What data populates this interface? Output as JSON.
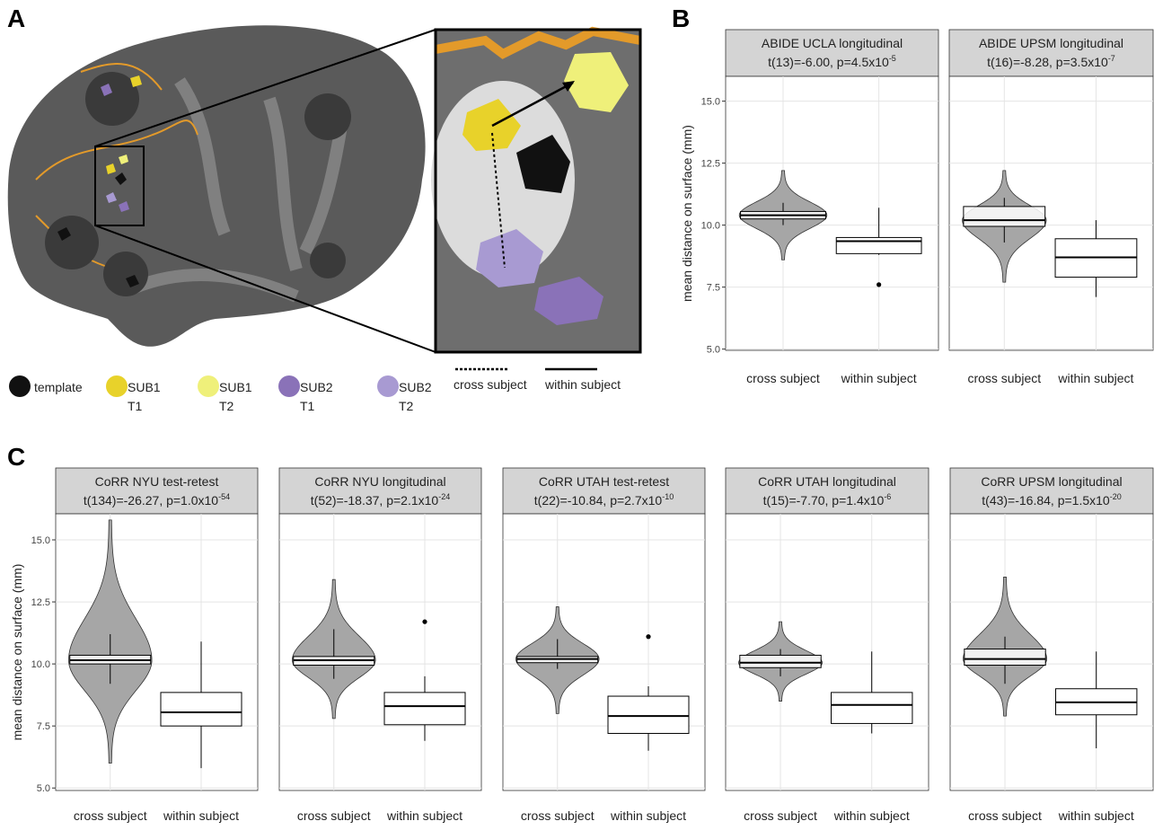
{
  "panel_labels": [
    "A",
    "B",
    "C"
  ],
  "panel_a": {
    "legend": [
      {
        "label": "template",
        "color": "#111111"
      },
      {
        "label": "SUB1\nT1",
        "color": "#e8d22a"
      },
      {
        "label": "SUB1\nT2",
        "color": "#eff07a"
      },
      {
        "label": "SUB2\nT1",
        "color": "#8a72b8"
      },
      {
        "label": "SUB2\nT2",
        "color": "#a89ad2"
      }
    ],
    "line_legend": [
      "cross subject",
      "within subject"
    ]
  },
  "chart_data": [
    {
      "type": "violin",
      "title": "ABIDE UCLA longitudinal",
      "subtitle": "t(13)=-6.00, p=4.5x10",
      "subtitle_exponent": "-5",
      "ylabel": "mean distance on surface (mm)",
      "categories": [
        "cross subject",
        "within subject"
      ],
      "ylim": [
        4.95,
        16.0
      ],
      "yticks": [
        {
          "value": 5,
          "label": "5.0"
        },
        {
          "value": 7.5,
          "label": "7.5"
        },
        {
          "value": 10,
          "label": "10.0"
        },
        {
          "value": 12.5,
          "label": "12.5"
        },
        {
          "value": 15,
          "label": "15.0"
        }
      ],
      "grid": true,
      "violin": {
        "color": "#a6a6a6",
        "min": 8.6,
        "max": 12.2
      },
      "boxes": [
        {
          "whisker_low": 10.0,
          "q1": 10.25,
          "median": 10.4,
          "q3": 10.55,
          "whisker_high": 10.9,
          "outliers": []
        },
        {
          "whisker_low": 8.8,
          "q1": 8.85,
          "median": 9.35,
          "q3": 9.5,
          "whisker_high": 10.7,
          "outliers": [
            7.6
          ]
        }
      ]
    },
    {
      "type": "violin",
      "title": "ABIDE UPSM longitudinal",
      "subtitle": "t(16)=-8.28, p=3.5x10",
      "subtitle_exponent": "-7",
      "categories": [
        "cross subject",
        "within subject"
      ],
      "ylim": [
        4.95,
        16.0
      ],
      "yticks": [
        5,
        7.5,
        10,
        12.5,
        15
      ],
      "grid": true,
      "violin": {
        "color": "#a6a6a6",
        "min": 7.7,
        "max": 12.2
      },
      "boxes": [
        {
          "whisker_low": 9.3,
          "q1": 9.95,
          "median": 10.2,
          "q3": 10.75,
          "whisker_high": 11.1,
          "outliers": []
        },
        {
          "whisker_low": 7.1,
          "q1": 7.9,
          "median": 8.7,
          "q3": 9.45,
          "whisker_high": 10.2,
          "outliers": []
        }
      ]
    },
    {
      "type": "violin",
      "title": "CoRR NYU test-retest",
      "subtitle": "t(134)=-26.27, p=1.0x10",
      "subtitle_exponent": "-54",
      "ylabel": "mean distance on surface (mm)",
      "categories": [
        "cross subject",
        "within subject"
      ],
      "ylim": [
        4.9,
        16.05
      ],
      "yticks": [
        {
          "value": 5,
          "label": "5.0"
        },
        {
          "value": 7.5,
          "label": "7.5"
        },
        {
          "value": 10,
          "label": "10.0"
        },
        {
          "value": 12.5,
          "label": "12.5"
        },
        {
          "value": 15,
          "label": "15.0"
        }
      ],
      "grid": true,
      "violin": {
        "color": "#a6a6a6",
        "min": 6.0,
        "max": 15.8
      },
      "boxes": [
        {
          "whisker_low": 9.2,
          "q1": 10.0,
          "median": 10.15,
          "q3": 10.35,
          "whisker_high": 11.2,
          "outliers": []
        },
        {
          "whisker_low": 5.8,
          "q1": 7.5,
          "median": 8.05,
          "q3": 8.85,
          "whisker_high": 10.9,
          "outliers": []
        }
      ]
    },
    {
      "type": "violin",
      "title": "CoRR NYU longitudinal",
      "subtitle": "t(52)=-18.37, p=2.1x10",
      "subtitle_exponent": "-24",
      "categories": [
        "cross subject",
        "within subject"
      ],
      "ylim": [
        4.9,
        16.05
      ],
      "yticks": [
        5,
        7.5,
        10,
        12.5,
        15
      ],
      "grid": true,
      "violin": {
        "color": "#a6a6a6",
        "min": 7.8,
        "max": 13.4
      },
      "boxes": [
        {
          "whisker_low": 9.4,
          "q1": 9.95,
          "median": 10.15,
          "q3": 10.3,
          "whisker_high": 11.4,
          "outliers": []
        },
        {
          "whisker_low": 6.9,
          "q1": 7.55,
          "median": 8.3,
          "q3": 8.85,
          "whisker_high": 9.5,
          "outliers": [
            11.7
          ]
        }
      ]
    },
    {
      "type": "violin",
      "title": "CoRR UTAH test-retest",
      "subtitle": "t(22)=-10.84, p=2.7x10",
      "subtitle_exponent": "-10",
      "categories": [
        "cross subject",
        "within subject"
      ],
      "ylim": [
        4.9,
        16.05
      ],
      "yticks": [
        5,
        7.5,
        10,
        12.5,
        15
      ],
      "grid": true,
      "violin": {
        "color": "#a6a6a6",
        "min": 8.0,
        "max": 12.3
      },
      "boxes": [
        {
          "whisker_low": 9.8,
          "q1": 10.05,
          "median": 10.2,
          "q3": 10.3,
          "whisker_high": 11.0,
          "outliers": []
        },
        {
          "whisker_low": 6.5,
          "q1": 7.2,
          "median": 7.9,
          "q3": 8.7,
          "whisker_high": 9.1,
          "outliers": [
            11.1
          ]
        }
      ]
    },
    {
      "type": "violin",
      "title": "CoRR UTAH longitudinal",
      "subtitle": "t(15)=-7.70, p=1.4x10",
      "subtitle_exponent": "-6",
      "categories": [
        "cross subject",
        "within subject"
      ],
      "ylim": [
        4.9,
        16.05
      ],
      "yticks": [
        5,
        7.5,
        10,
        12.5,
        15
      ],
      "grid": true,
      "violin": {
        "color": "#a6a6a6",
        "min": 8.5,
        "max": 11.7
      },
      "boxes": [
        {
          "whisker_low": 9.5,
          "q1": 9.85,
          "median": 10.05,
          "q3": 10.35,
          "whisker_high": 10.6,
          "outliers": []
        },
        {
          "whisker_low": 7.2,
          "q1": 7.6,
          "median": 8.35,
          "q3": 8.85,
          "whisker_high": 10.5,
          "outliers": []
        }
      ]
    },
    {
      "type": "violin",
      "title": "CoRR UPSM longitudinal",
      "subtitle": "t(43)=-16.84, p=1.5x10",
      "subtitle_exponent": "-20",
      "categories": [
        "cross subject",
        "within subject"
      ],
      "ylim": [
        4.9,
        16.05
      ],
      "yticks": [
        5,
        7.5,
        10,
        12.5,
        15
      ],
      "grid": true,
      "violin": {
        "color": "#a6a6a6",
        "min": 7.9,
        "max": 13.5
      },
      "boxes": [
        {
          "whisker_low": 9.2,
          "q1": 9.95,
          "median": 10.2,
          "q3": 10.6,
          "whisker_high": 11.1,
          "outliers": []
        },
        {
          "whisker_low": 6.6,
          "q1": 7.95,
          "median": 8.45,
          "q3": 9.0,
          "whisker_high": 10.5,
          "outliers": []
        }
      ]
    }
  ]
}
